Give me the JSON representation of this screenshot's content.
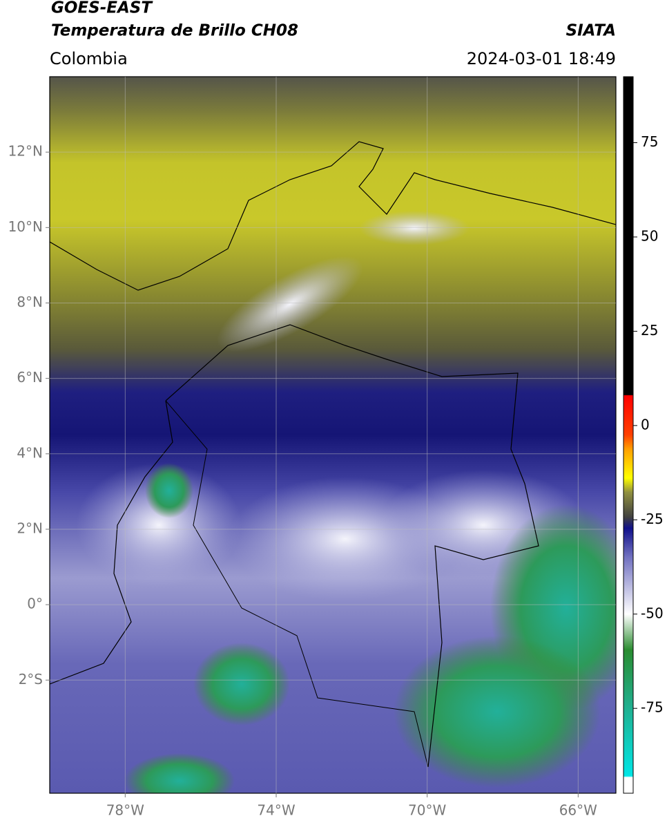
{
  "header": {
    "title_line1": "GOES-EAST",
    "title_line2": "Temperatura de Brillo CH08",
    "source": "SIATA",
    "region": "Colombia",
    "datetime": "2024-03-01 18:49"
  },
  "map": {
    "xlim": [
      -80,
      -65
    ],
    "ylim": [
      -5,
      14
    ],
    "xticks": [
      {
        "value": -78,
        "label": "78°W"
      },
      {
        "value": -74,
        "label": "74°W"
      },
      {
        "value": -70,
        "label": "70°W"
      },
      {
        "value": -66,
        "label": "66°W"
      }
    ],
    "yticks": [
      {
        "value": 12,
        "label": "12°N"
      },
      {
        "value": 10,
        "label": "10°N"
      },
      {
        "value": 8,
        "label": "8°N"
      },
      {
        "value": 6,
        "label": "6°N"
      },
      {
        "value": 4,
        "label": "4°N"
      },
      {
        "value": 2,
        "label": "2°N"
      },
      {
        "value": 0,
        "label": "0°"
      },
      {
        "value": -2,
        "label": "2°S"
      }
    ],
    "grid": true
  },
  "colorbar": {
    "lim": [
      -97.5,
      92.5
    ],
    "ticks": [
      75,
      50,
      25,
      0,
      -25,
      -50,
      -75
    ]
  }
}
